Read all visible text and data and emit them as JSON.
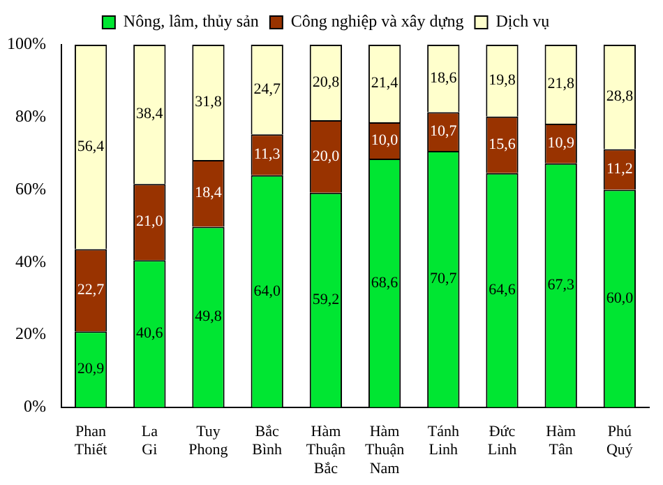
{
  "chart_data": {
    "type": "bar",
    "stacked": true,
    "legend": "top",
    "grid": false,
    "categories": [
      "Phan Thiết",
      "La Gi",
      "Tuy Phong",
      "Bắc Bình",
      "Hàm Thuận Bắc",
      "Hàm Thuận Nam",
      "Tánh Linh",
      "Đức Linh",
      "Hàm Tân",
      "Phú Quý"
    ],
    "ylim": [
      0,
      100
    ],
    "yticks": [
      {
        "value": 0,
        "label": "0%"
      },
      {
        "value": 20,
        "label": "20%"
      },
      {
        "value": 40,
        "label": "40%"
      },
      {
        "value": 60,
        "label": "60%"
      },
      {
        "value": 80,
        "label": "80%"
      },
      {
        "value": 100,
        "label": "100%"
      }
    ],
    "series": [
      {
        "name": "Nông, lâm, thủy sản",
        "color": "#00e632",
        "values": [
          20.9,
          40.6,
          49.8,
          64.0,
          59.2,
          68.6,
          70.7,
          64.6,
          67.3,
          60.0
        ],
        "value_labels": [
          "20,9",
          "40,6",
          "49,8",
          "64,0",
          "59,2",
          "68,6",
          "70,7",
          "64,6",
          "67,3",
          "60,0"
        ]
      },
      {
        "name": "Công nghiệp và xây dựng",
        "color": "#993300",
        "values": [
          22.7,
          21.0,
          18.4,
          11.3,
          20.0,
          10.0,
          10.7,
          15.6,
          10.9,
          11.2
        ],
        "value_labels": [
          "22,7",
          "21,0",
          "18,4",
          "11,3",
          "20,0",
          "10,0",
          "10,7",
          "15,6",
          "10,9",
          "11,2"
        ]
      },
      {
        "name": "Dịch vụ",
        "color": "#ffffcc",
        "values": [
          56.4,
          38.4,
          31.8,
          24.7,
          20.8,
          21.4,
          18.6,
          19.8,
          21.8,
          28.8
        ],
        "value_labels": [
          "56,4",
          "38,4",
          "31,8",
          "24,7",
          "20,8",
          "21,4",
          "18,6",
          "19,8",
          "21,8",
          "28,8"
        ]
      }
    ]
  }
}
